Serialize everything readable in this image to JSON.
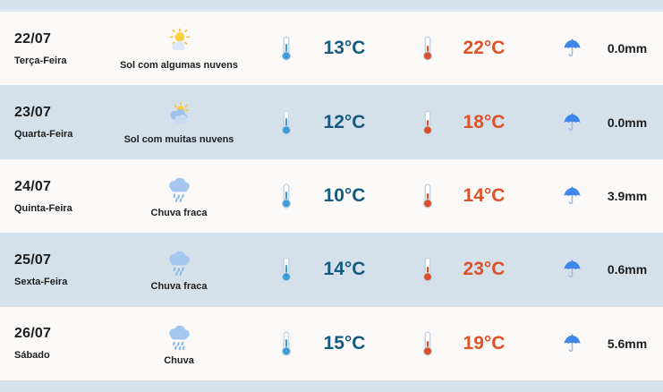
{
  "colors": {
    "row_light": "#faf9f7",
    "row_dark": "#d5e1ea",
    "text": "#1e1e1e",
    "min_temp": "#175a80",
    "max_temp": "#dd5226",
    "umbrella_blue": "#3f87ea",
    "therm_min_blue": "#3d9bd5",
    "therm_max_red": "#d94f28"
  },
  "forecast": {
    "rows": [
      {
        "date": "22/07",
        "day": "Terça-Feira",
        "condition": "Sol com algumas nuvens",
        "icon": "sun-some-clouds",
        "min_temp": "13°C",
        "max_temp": "22°C",
        "precipitation": "0.0mm"
      },
      {
        "date": "23/07",
        "day": "Quarta-Feira",
        "condition": "Sol com muitas nuvens",
        "icon": "sun-many-clouds",
        "min_temp": "12°C",
        "max_temp": "18°C",
        "precipitation": "0.0mm"
      },
      {
        "date": "24/07",
        "day": "Quinta-Feira",
        "condition": "Chuva fraca",
        "icon": "light-rain",
        "min_temp": "10°C",
        "max_temp": "14°C",
        "precipitation": "3.9mm"
      },
      {
        "date": "25/07",
        "day": "Sexta-Feira",
        "condition": "Chuva fraca",
        "icon": "light-rain",
        "min_temp": "14°C",
        "max_temp": "23°C",
        "precipitation": "0.6mm"
      },
      {
        "date": "26/07",
        "day": "Sábado",
        "condition": "Chuva",
        "icon": "rain",
        "min_temp": "15°C",
        "max_temp": "19°C",
        "precipitation": "5.6mm"
      }
    ]
  }
}
